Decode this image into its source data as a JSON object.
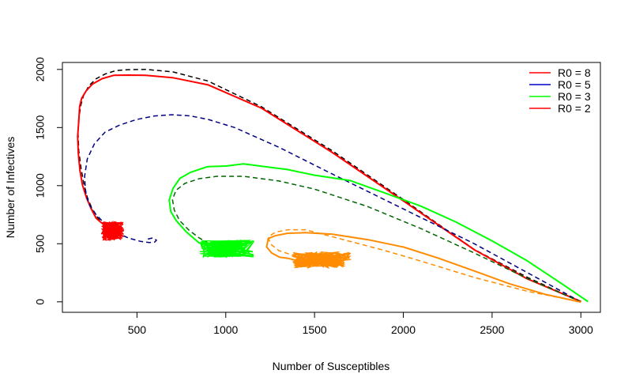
{
  "chart_data": {
    "type": "line",
    "title": "",
    "xlabel": "Number of Susceptibles",
    "ylabel": "Number of Infectives",
    "xlim": [
      80,
      3110
    ],
    "ylim": [
      -90,
      2060
    ],
    "xticks": [
      500,
      1000,
      1500,
      2000,
      2500,
      3000
    ],
    "yticks": [
      0,
      500,
      1000,
      1500,
      2000
    ],
    "legend": {
      "position": "top-right",
      "entries": [
        {
          "label": "R0 = 8",
          "color": "#ff0000"
        },
        {
          "label": "R0 = 5",
          "color": "#0000cd"
        },
        {
          "label": "R0 = 3",
          "color": "#00ff00"
        },
        {
          "label": "R0 = 2",
          "color": "#ff0000"
        }
      ]
    },
    "series": [
      {
        "name": "R0 = 8 deterministic",
        "style": "dashed",
        "color": "#000000",
        "x": [
          3000,
          2700,
          2400,
          2000,
          1600,
          1200,
          900,
          700,
          550,
          450,
          380,
          320,
          270,
          230,
          200,
          185,
          172,
          168,
          172,
          185,
          200,
          220,
          250,
          290,
          330,
          370,
          395,
          375,
          350
        ],
        "y": [
          0,
          210,
          450,
          880,
          1300,
          1680,
          1900,
          1980,
          2000,
          1998,
          1990,
          1960,
          1920,
          1860,
          1780,
          1700,
          1580,
          1450,
          1300,
          1150,
          1020,
          900,
          790,
          700,
          655,
          630,
          615,
          610,
          620
        ]
      },
      {
        "name": "R0 = 8 stochastic",
        "style": "solid",
        "color": "#ff0000",
        "x": [
          3000,
          2700,
          2400,
          2000,
          1600,
          1200,
          900,
          700,
          550,
          450,
          370,
          300,
          250,
          210,
          190,
          178,
          170,
          165,
          168,
          180,
          195,
          215,
          240,
          270,
          300,
          330
        ],
        "y": [
          0,
          200,
          450,
          870,
          1290,
          1670,
          1870,
          1930,
          1945,
          1955,
          1950,
          1920,
          1880,
          1820,
          1750,
          1680,
          1560,
          1420,
          1280,
          1130,
          1000,
          890,
          800,
          720,
          680,
          650
        ]
      },
      {
        "name": "R0 = 5 deterministic",
        "style": "dashed",
        "color": "#000080",
        "x": [
          3000,
          2700,
          2400,
          2000,
          1600,
          1300,
          1050,
          900,
          800,
          700,
          600,
          500,
          400,
          320,
          260,
          220,
          205,
          210,
          230,
          270,
          320,
          380,
          450,
          520,
          570,
          600,
          610,
          590,
          560
        ],
        "y": [
          0,
          250,
          500,
          800,
          1100,
          1330,
          1500,
          1570,
          1600,
          1610,
          1600,
          1570,
          1520,
          1460,
          1360,
          1230,
          1080,
          950,
          840,
          750,
          670,
          600,
          550,
          520,
          510,
          515,
          530,
          550,
          540
        ]
      },
      {
        "name": "R0 = 3 deterministic",
        "style": "dashed",
        "color": "#006400",
        "x": [
          3000,
          2700,
          2400,
          2100,
          1800,
          1500,
          1300,
          1100,
          950,
          850,
          770,
          720,
          700,
          710,
          740,
          790,
          850,
          920,
          990,
          1040,
          1060,
          1040,
          1010,
          990
        ],
        "y": [
          0,
          200,
          420,
          630,
          820,
          970,
          1040,
          1080,
          1080,
          1060,
          1020,
          960,
          880,
          790,
          700,
          620,
          550,
          490,
          450,
          440,
          450,
          470,
          460,
          440
        ]
      },
      {
        "name": "R0 = 3 stochastic",
        "style": "solid",
        "color": "#00ff00",
        "x": [
          3040,
          2900,
          2700,
          2500,
          2300,
          2100,
          1900,
          1700,
          1500,
          1350,
          1200,
          1100,
          1000,
          900,
          800,
          740,
          700,
          680,
          690,
          720,
          780,
          850,
          950,
          1050,
          1150
        ],
        "y": [
          0,
          150,
          350,
          520,
          690,
          820,
          940,
          1040,
          1090,
          1140,
          1170,
          1185,
          1170,
          1160,
          1120,
          1060,
          980,
          880,
          780,
          700,
          600,
          510,
          480,
          460,
          430
        ]
      },
      {
        "name": "R0 = 2 deterministic",
        "style": "dashed",
        "color": "#ff8c00",
        "x": [
          3000,
          2700,
          2400,
          2100,
          1900,
          1700,
          1550,
          1450,
          1350,
          1280,
          1240,
          1250,
          1300,
          1380,
          1450
        ],
        "y": [
          0,
          90,
          210,
          350,
          440,
          520,
          580,
          620,
          620,
          600,
          560,
          500,
          440,
          400,
          380
        ]
      },
      {
        "name": "R0 = 2 stochastic",
        "style": "solid",
        "color": "#ff8c00",
        "x": [
          3000,
          2800,
          2600,
          2400,
          2200,
          2000,
          1800,
          1600,
          1450,
          1350,
          1280,
          1240,
          1230,
          1260,
          1300,
          1350,
          1400,
          1450
        ],
        "y": [
          0,
          60,
          160,
          270,
          380,
          470,
          530,
          580,
          590,
          590,
          570,
          540,
          470,
          420,
          390,
          370,
          360,
          350
        ]
      }
    ],
    "clusters": [
      {
        "name": "R0 = 8 endemic cluster",
        "color": "#ff0000",
        "x_range": [
          300,
          430
        ],
        "y_range": [
          530,
          690
        ]
      },
      {
        "name": "R0 = 3 endemic cluster",
        "color": "#00ff00",
        "x_range": [
          850,
          1160
        ],
        "y_range": [
          380,
          530
        ]
      },
      {
        "name": "R0 = 2 endemic cluster",
        "color": "#ff8c00",
        "x_range": [
          1370,
          1710
        ],
        "y_range": [
          290,
          430
        ]
      }
    ]
  }
}
